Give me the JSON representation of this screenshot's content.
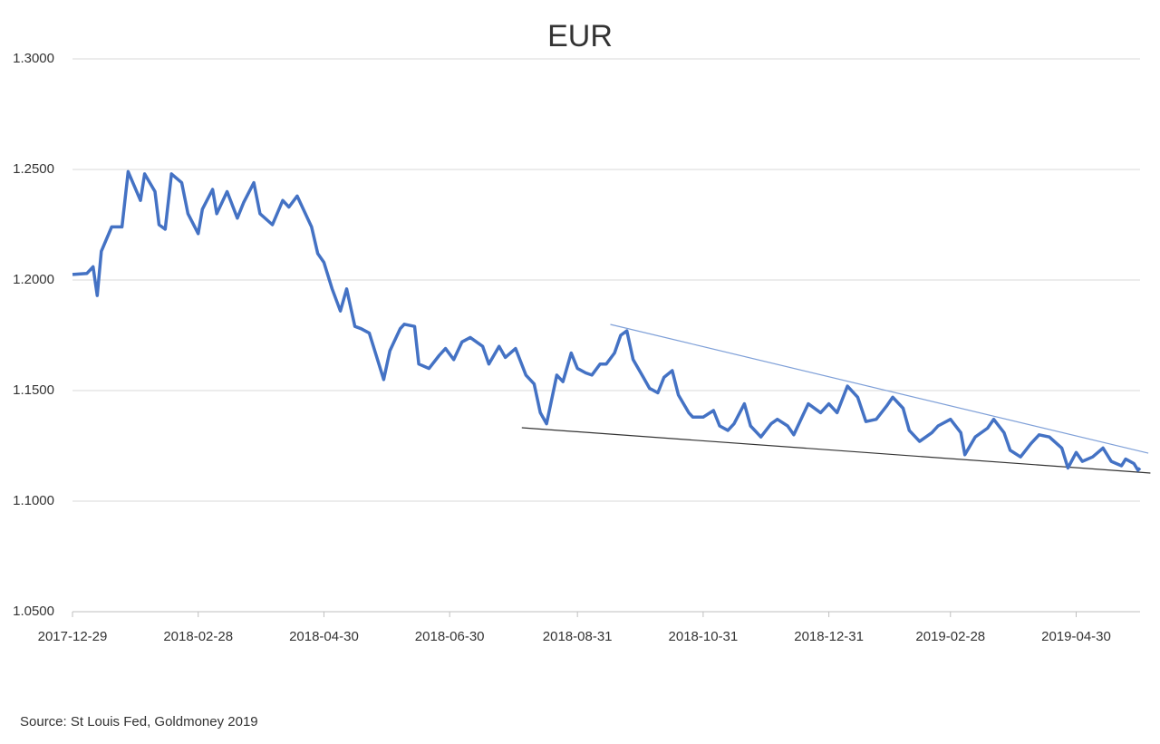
{
  "chart_data": {
    "type": "line",
    "title": "EUR",
    "source": "Source: St Louis Fed, Goldmoney 2019",
    "x": [
      "2017-12-29",
      "2018-01-05",
      "2018-01-08",
      "2018-01-10",
      "2018-01-12",
      "2018-01-17",
      "2018-01-22",
      "2018-01-25",
      "2018-01-31",
      "2018-02-02",
      "2018-02-07",
      "2018-02-09",
      "2018-02-12",
      "2018-02-15",
      "2018-02-20",
      "2018-02-23",
      "2018-02-28",
      "2018-03-02",
      "2018-03-07",
      "2018-03-09",
      "2018-03-14",
      "2018-03-19",
      "2018-03-22",
      "2018-03-27",
      "2018-03-30",
      "2018-04-05",
      "2018-04-10",
      "2018-04-13",
      "2018-04-17",
      "2018-04-20",
      "2018-04-24",
      "2018-04-27",
      "2018-04-30",
      "2018-05-04",
      "2018-05-08",
      "2018-05-11",
      "2018-05-15",
      "2018-05-18",
      "2018-05-22",
      "2018-05-25",
      "2018-05-29",
      "2018-06-01",
      "2018-06-06",
      "2018-06-08",
      "2018-06-13",
      "2018-06-15",
      "2018-06-20",
      "2018-06-25",
      "2018-06-28",
      "2018-07-02",
      "2018-07-06",
      "2018-07-10",
      "2018-07-16",
      "2018-07-19",
      "2018-07-24",
      "2018-07-27",
      "2018-08-01",
      "2018-08-06",
      "2018-08-10",
      "2018-08-13",
      "2018-08-16",
      "2018-08-21",
      "2018-08-24",
      "2018-08-28",
      "2018-08-31",
      "2018-09-04",
      "2018-09-07",
      "2018-09-11",
      "2018-09-14",
      "2018-09-18",
      "2018-09-21",
      "2018-09-24",
      "2018-09-27",
      "2018-10-02",
      "2018-10-05",
      "2018-10-09",
      "2018-10-12",
      "2018-10-16",
      "2018-10-19",
      "2018-10-24",
      "2018-10-26",
      "2018-10-31",
      "2018-11-05",
      "2018-11-08",
      "2018-11-12",
      "2018-11-15",
      "2018-11-20",
      "2018-11-23",
      "2018-11-28",
      "2018-12-03",
      "2018-12-06",
      "2018-12-11",
      "2018-12-14",
      "2018-12-18",
      "2018-12-21",
      "2018-12-27",
      "2018-12-31",
      "2019-01-04",
      "2019-01-09",
      "2019-01-14",
      "2019-01-18",
      "2019-01-23",
      "2019-01-28",
      "2019-01-31",
      "2019-02-05",
      "2019-02-08",
      "2019-02-13",
      "2019-02-19",
      "2019-02-22",
      "2019-02-28",
      "2019-03-05",
      "2019-03-07",
      "2019-03-12",
      "2019-03-18",
      "2019-03-21",
      "2019-03-26",
      "2019-03-29",
      "2019-04-03",
      "2019-04-08",
      "2019-04-12",
      "2019-04-17",
      "2019-04-23",
      "2019-04-26",
      "2019-04-30",
      "2019-05-03",
      "2019-05-08",
      "2019-05-13",
      "2019-05-17",
      "2019-05-22",
      "2019-05-24",
      "2019-05-28",
      "2019-05-30",
      "2019-05-31"
    ],
    "series": [
      {
        "name": "EUR",
        "color": "#4472c4",
        "values": [
          1.2025,
          1.203,
          1.206,
          1.193,
          1.213,
          1.224,
          1.224,
          1.249,
          1.236,
          1.248,
          1.24,
          1.225,
          1.223,
          1.248,
          1.244,
          1.23,
          1.221,
          1.232,
          1.241,
          1.23,
          1.24,
          1.228,
          1.235,
          1.244,
          1.23,
          1.225,
          1.236,
          1.233,
          1.238,
          1.232,
          1.224,
          1.212,
          1.208,
          1.196,
          1.186,
          1.196,
          1.179,
          1.178,
          1.176,
          1.167,
          1.155,
          1.168,
          1.178,
          1.18,
          1.179,
          1.162,
          1.16,
          1.166,
          1.169,
          1.164,
          1.172,
          1.174,
          1.17,
          1.162,
          1.17,
          1.165,
          1.169,
          1.157,
          1.153,
          1.14,
          1.135,
          1.157,
          1.154,
          1.167,
          1.16,
          1.158,
          1.157,
          1.162,
          1.162,
          1.167,
          1.175,
          1.177,
          1.164,
          1.156,
          1.151,
          1.149,
          1.156,
          1.159,
          1.148,
          1.14,
          1.138,
          1.138,
          1.141,
          1.134,
          1.132,
          1.135,
          1.144,
          1.134,
          1.129,
          1.135,
          1.137,
          1.134,
          1.13,
          1.138,
          1.144,
          1.14,
          1.144,
          1.14,
          1.152,
          1.147,
          1.136,
          1.137,
          1.143,
          1.147,
          1.142,
          1.132,
          1.127,
          1.131,
          1.134,
          1.137,
          1.131,
          1.121,
          1.129,
          1.133,
          1.137,
          1.131,
          1.123,
          1.12,
          1.126,
          1.13,
          1.129,
          1.124,
          1.115,
          1.122,
          1.118,
          1.12,
          1.124,
          1.118,
          1.116,
          1.119,
          1.117,
          1.114,
          1.115
        ]
      }
    ],
    "trendlines": [
      {
        "color": "#7fa0d8",
        "x": [
          "2018-09-16",
          "2019-06-04"
        ],
        "y": [
          1.1799,
          1.1217
        ]
      },
      {
        "color": "#333333",
        "x": [
          "2018-08-04",
          "2019-06-05"
        ],
        "y": [
          1.1332,
          1.1127
        ]
      }
    ],
    "xlim": [
      "2017-12-29",
      "2019-05-31"
    ],
    "xticks": [
      "2017-12-29",
      "2018-02-28",
      "2018-04-30",
      "2018-06-30",
      "2018-08-31",
      "2018-10-31",
      "2018-12-31",
      "2019-02-28",
      "2019-04-30"
    ],
    "ylim": [
      1.05,
      1.3
    ],
    "yticks": [
      {
        "value": 1.05,
        "label": "1.0500"
      },
      {
        "value": 1.1,
        "label": "1.1000"
      },
      {
        "value": 1.15,
        "label": "1.1500"
      },
      {
        "value": 1.2,
        "label": "1.2000"
      },
      {
        "value": 1.25,
        "label": "1.2500"
      },
      {
        "value": 1.3,
        "label": "1.3000"
      }
    ],
    "grid": true
  }
}
